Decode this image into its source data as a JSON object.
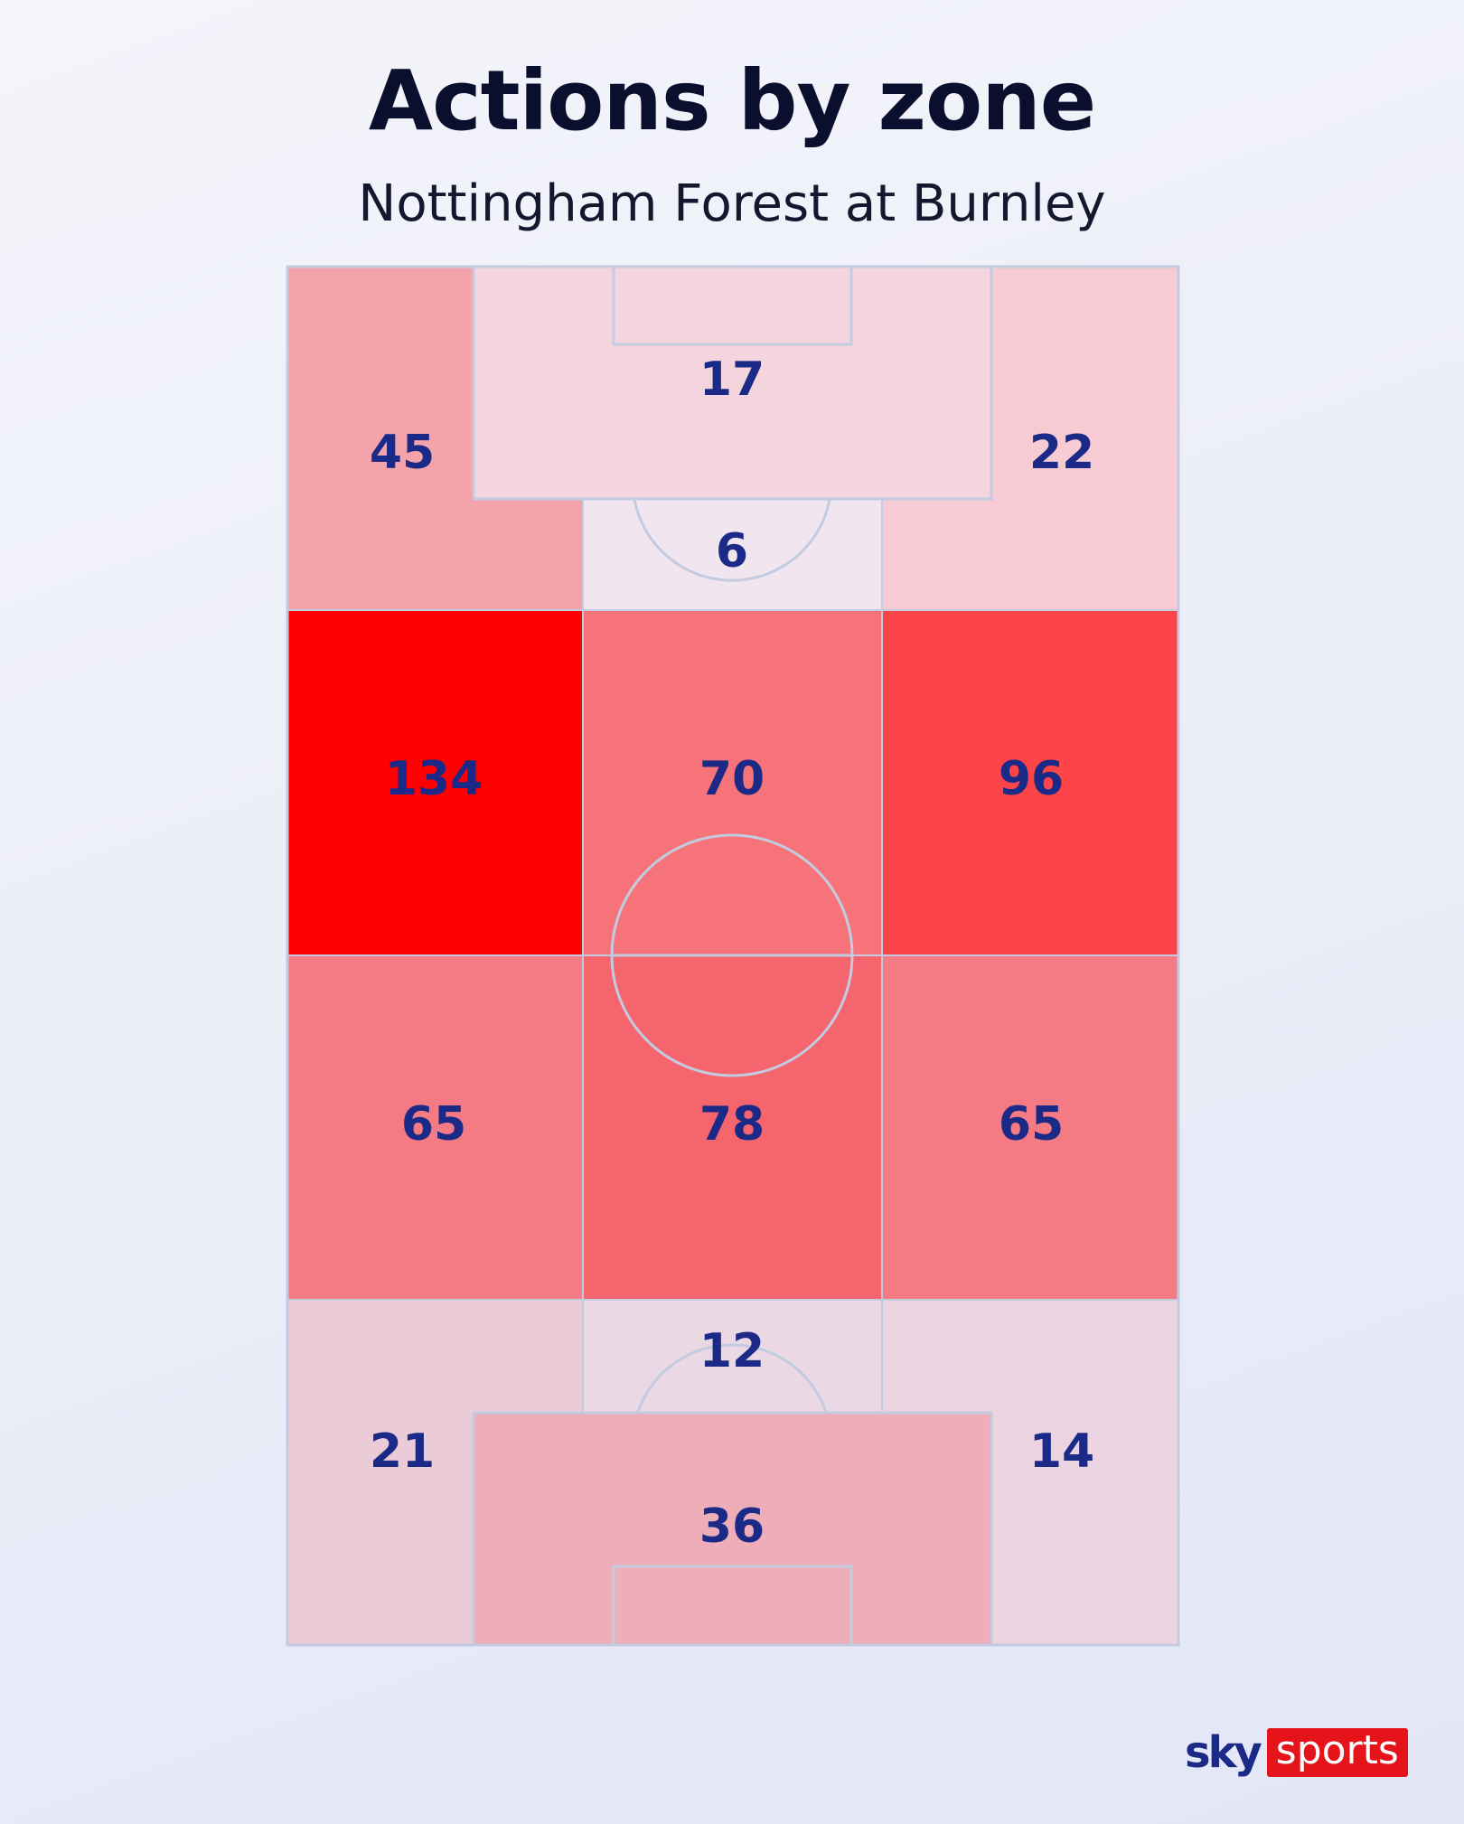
{
  "chart_data": {
    "type": "heatmap",
    "title": "Actions by zone",
    "subtitle": "Nottingham Forest at Burnley",
    "zones": [
      {
        "id": "attack-left-wing",
        "label": "45",
        "value": 45,
        "color": "#f5a3ab"
      },
      {
        "id": "attack-box",
        "label": "17",
        "value": 17,
        "color": "#f5d5dd"
      },
      {
        "id": "attack-right-wing",
        "label": "22",
        "value": 22,
        "color": "#f6cbd3"
      },
      {
        "id": "attack-zone-14",
        "label": "6",
        "value": 6,
        "color": "#f1e5f0"
      },
      {
        "id": "upper-mid-left",
        "label": "134",
        "value": 134,
        "color": "#ff0000"
      },
      {
        "id": "upper-mid-center",
        "label": "70",
        "value": 70,
        "color": "#f7737a"
      },
      {
        "id": "upper-mid-right",
        "label": "96",
        "value": 96,
        "color": "#fd4549"
      },
      {
        "id": "lower-mid-left",
        "label": "65",
        "value": 65,
        "color": "#f47b83"
      },
      {
        "id": "lower-mid-center",
        "label": "78",
        "value": 78,
        "color": "#f4656d"
      },
      {
        "id": "lower-mid-right",
        "label": "65",
        "value": 65,
        "color": "#f47b83"
      },
      {
        "id": "defence-zone-14",
        "label": "12",
        "value": 12,
        "color": "#ebd8e5"
      },
      {
        "id": "defence-left-wing",
        "label": "21",
        "value": 21,
        "color": "#eccbd9"
      },
      {
        "id": "defence-right-wing",
        "label": "14",
        "value": 14,
        "color": "#ecd3e0"
      },
      {
        "id": "defence-box",
        "label": "36",
        "value": 36,
        "color": "#edadb9"
      }
    ]
  },
  "colors": {
    "pitch_lines": "#c3cbe0",
    "label": "#1b2a86",
    "title": "#0b0f2e",
    "brand_red": "#e4141a"
  },
  "logo": {
    "sky": "sky",
    "sports": "sports"
  }
}
